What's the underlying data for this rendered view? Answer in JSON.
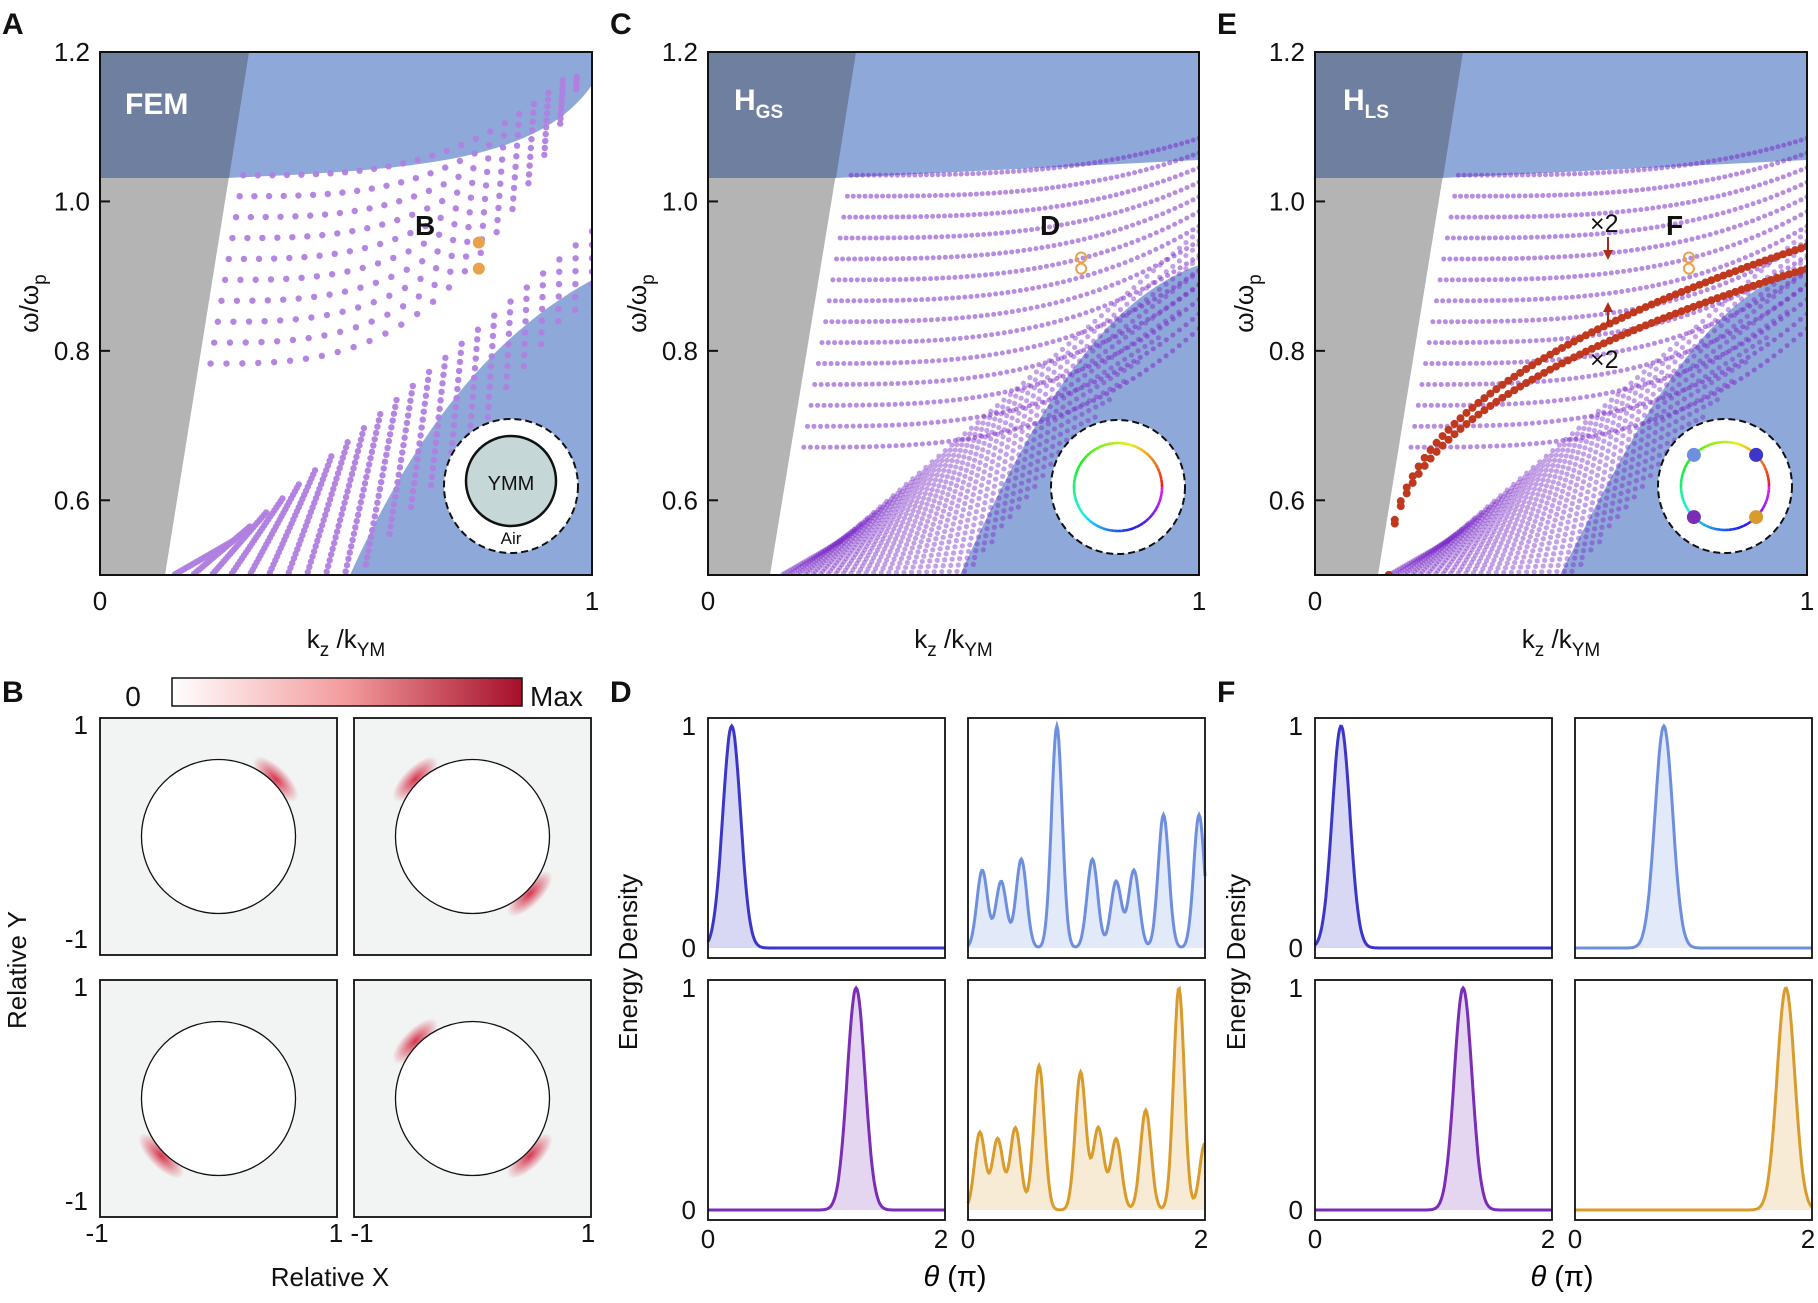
{
  "colors": {
    "light_cone": "#b4b4b4",
    "bulk_band": "#8fa8da",
    "overlap": "#6f7fa0",
    "mode_purple": "#b07fe0",
    "mode_dark": "#7d2fc8",
    "surface_mode": "#c0391f",
    "marker": "#e8a24a",
    "heat_max": "#a50f2a",
    "cyl_fill": "#c6d7d7",
    "ed_blue": "#3c36c8",
    "ed_lightblue": "#6e8fe0",
    "ed_purple": "#7a2db5",
    "ed_gold": "#d99b2c"
  },
  "panels": {
    "A": {
      "letter": "A",
      "tag": "FEM",
      "marker": "B",
      "inset_inner": "YMM",
      "inset_outer": "Air"
    },
    "C": {
      "letter": "C",
      "tag": "H",
      "tag_sub": "GS",
      "marker": "D"
    },
    "E": {
      "letter": "E",
      "tag": "H",
      "tag_sub": "LS",
      "marker": "F",
      "mult_top": "×2",
      "mult_bot": "×2"
    },
    "B": {
      "letter": "B",
      "colorbar_min": "0",
      "colorbar_max": "Max",
      "xlabel": "Relative X",
      "ylabel": "Relative Y",
      "ticks": [
        "-1",
        "1"
      ]
    },
    "D": {
      "letter": "D"
    },
    "F": {
      "letter": "F"
    }
  },
  "axis_text": {
    "ylabel": "ω/ω",
    "ylabel_sub": "p",
    "xlabel_main": "k",
    "xlabel_sub1": "z",
    "xlabel_mid": " /k",
    "xlabel_sub2": "YM",
    "ed_ylabel": "Energy Density",
    "theta_label": "θ",
    "theta_unit": " (π)"
  },
  "chart_data": [
    {
      "panel": "A",
      "type": "scatter",
      "title": "",
      "xlabel": "kz/kYM",
      "ylabel": "ω/ωp",
      "xlim": [
        0,
        1
      ],
      "ylim": [
        0.5,
        1.2
      ],
      "xticks": [
        "0",
        "1"
      ],
      "yticks": [
        "0.6",
        "0.8",
        "1.0",
        "1.2"
      ],
      "series": [
        {
          "name": "",
          "description_points": "discrete mode dots filling the region between light line and bulk bands"
        }
      ],
      "highlighted_points": [
        [
          0.77,
          0.945
        ],
        [
          0.77,
          0.91
        ]
      ]
    },
    {
      "panel": "C",
      "type": "scatter",
      "title": "",
      "xlabel": "kz/kYM",
      "ylabel": "ω/ωp",
      "xlim": [
        0,
        1
      ],
      "ylim": [
        0.5,
        1.2
      ],
      "xticks": [
        "0",
        "1"
      ],
      "yticks": [
        "0.6",
        "0.8",
        "1.0",
        "1.2"
      ],
      "highlighted_points": [
        [
          0.76,
          0.925
        ],
        [
          0.76,
          0.91
        ]
      ]
    },
    {
      "panel": "E",
      "type": "scatter",
      "title": "",
      "xlabel": "kz/kYM",
      "ylabel": "ω/ωp",
      "xlim": [
        0,
        1
      ],
      "ylim": [
        0.5,
        1.2
      ],
      "xticks": [
        "0",
        "1"
      ],
      "yticks": [
        "0.6",
        "0.8",
        "1.0",
        "1.2"
      ],
      "highlighted_points": [
        [
          0.76,
          0.925
        ],
        [
          0.76,
          0.91
        ]
      ]
    },
    {
      "panel": "B",
      "type": "heatmap",
      "xlabel": "Relative X",
      "ylabel": "Relative Y",
      "xlim": [
        -1,
        1
      ],
      "ylim": [
        -1,
        1
      ],
      "subplots": [
        {
          "hotspot_angles_deg": [
            45
          ]
        },
        {
          "hotspot_angles_deg": [
            135,
            -45
          ]
        },
        {
          "hotspot_angles_deg": [
            225
          ]
        },
        {
          "hotspot_angles_deg": [
            135,
            -45
          ]
        }
      ]
    },
    {
      "panel": "D",
      "type": "line",
      "xlabel": "θ (π)",
      "ylabel": "Energy Density",
      "xlim": [
        0,
        2
      ],
      "ylim": [
        0,
        1
      ],
      "xticks": [
        "0",
        "2"
      ],
      "yticks": [
        "0",
        "1"
      ],
      "subplots": [
        {
          "color": "#3c36c8",
          "peaks": [
            [
              0.2,
              1.0
            ]
          ]
        },
        {
          "color": "#6e8fe0",
          "peaks": [
            [
              0.12,
              0.35
            ],
            [
              0.28,
              0.3
            ],
            [
              0.45,
              0.4
            ],
            [
              0.75,
              1.0
            ],
            [
              1.05,
              0.4
            ],
            [
              1.25,
              0.3
            ],
            [
              1.4,
              0.35
            ],
            [
              1.65,
              0.6
            ],
            [
              1.95,
              0.6
            ]
          ]
        },
        {
          "color": "#7a2db5",
          "peaks": [
            [
              1.25,
              1.0
            ]
          ]
        },
        {
          "color": "#d99b2c",
          "peaks": [
            [
              0.1,
              0.35
            ],
            [
              0.25,
              0.32
            ],
            [
              0.4,
              0.37
            ],
            [
              0.6,
              0.65
            ],
            [
              0.95,
              0.62
            ],
            [
              1.1,
              0.37
            ],
            [
              1.25,
              0.32
            ],
            [
              1.5,
              0.45
            ],
            [
              1.78,
              1.0
            ],
            [
              2.0,
              0.3
            ]
          ]
        }
      ]
    },
    {
      "panel": "F",
      "type": "line",
      "xlabel": "θ (π)",
      "ylabel": "Energy Density",
      "xlim": [
        0,
        2
      ],
      "ylim": [
        0,
        1
      ],
      "xticks": [
        "0",
        "2"
      ],
      "yticks": [
        "0",
        "1"
      ],
      "subplots": [
        {
          "color": "#3c36c8",
          "peaks": [
            [
              0.22,
              1.0
            ]
          ]
        },
        {
          "color": "#6e8fe0",
          "peaks": [
            [
              0.75,
              1.0
            ]
          ]
        },
        {
          "color": "#7a2db5",
          "peaks": [
            [
              1.25,
              1.0
            ]
          ]
        },
        {
          "color": "#d99b2c",
          "peaks": [
            [
              1.78,
              1.0
            ]
          ]
        }
      ]
    }
  ]
}
